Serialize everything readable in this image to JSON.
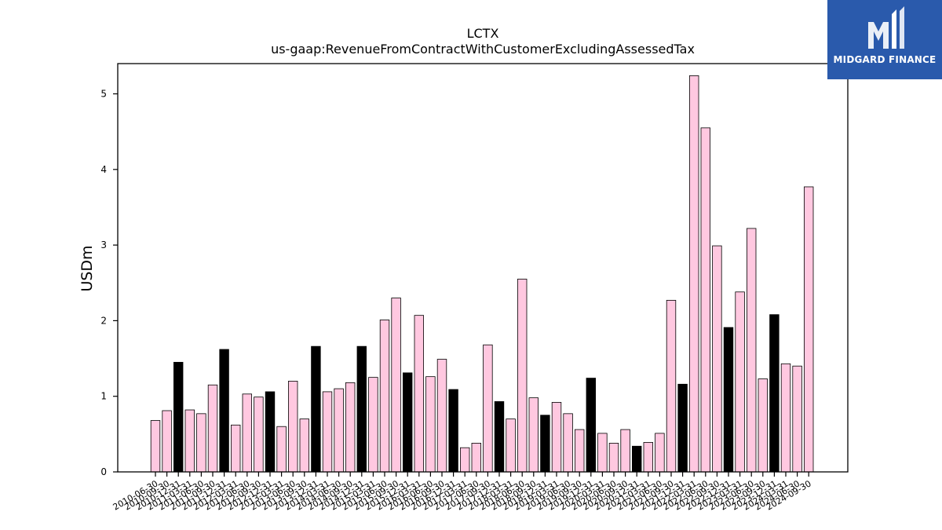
{
  "chart_data": {
    "type": "bar",
    "title": "LCTX",
    "subtitle": "us-gaap:RevenueFromContractWithCustomerExcludingAssessedTax",
    "xlabel": "",
    "ylabel": "USDm",
    "ylim": [
      0,
      5.4
    ],
    "yticks": [
      0,
      1,
      2,
      3,
      4,
      5
    ],
    "grid": false,
    "colors": {
      "default": "#ffc8e0",
      "highlight": "#000000",
      "edge": "#000000"
    },
    "categories": [
      "2010-06-30",
      "2010-09-30",
      "2010-12-31",
      "2011-03-31",
      "2011-06-30",
      "2011-09-30",
      "2011-12-31",
      "2012-03-31",
      "2012-06-30",
      "2012-09-30",
      "2012-12-31",
      "2013-03-31",
      "2013-06-30",
      "2013-09-30",
      "2013-12-31",
      "2014-03-31",
      "2014-06-30",
      "2014-09-30",
      "2014-12-31",
      "2015-03-31",
      "2015-06-30",
      "2015-09-30",
      "2015-12-31",
      "2016-03-31",
      "2016-06-30",
      "2016-09-30",
      "2016-12-31",
      "2017-03-31",
      "2017-06-30",
      "2017-09-30",
      "2017-12-31",
      "2018-03-31",
      "2018-06-30",
      "2018-09-30",
      "2018-12-31",
      "2019-03-31",
      "2019-06-30",
      "2019-09-30",
      "2019-12-31",
      "2020-03-31",
      "2020-06-30",
      "2020-09-30",
      "2020-12-31",
      "2021-03-31",
      "2021-06-30",
      "2021-09-30",
      "2021-12-31",
      "2022-03-31",
      "2022-06-30",
      "2022-09-30",
      "2022-12-31",
      "2023-03-31",
      "2023-06-30",
      "2023-09-30",
      "2023-12-31",
      "2024-03-31",
      "2024-06-30",
      "2024-09-30"
    ],
    "values": [
      0.68,
      0.81,
      1.45,
      0.82,
      0.77,
      1.15,
      1.62,
      0.62,
      1.03,
      0.99,
      1.06,
      0.6,
      1.2,
      0.7,
      1.66,
      1.06,
      1.1,
      1.18,
      1.66,
      1.25,
      2.01,
      2.3,
      1.31,
      2.07,
      1.26,
      1.49,
      1.09,
      0.32,
      0.38,
      1.68,
      0.93,
      0.7,
      2.55,
      0.98,
      0.75,
      0.92,
      0.77,
      0.56,
      1.24,
      0.51,
      0.38,
      0.56,
      0.34,
      0.39,
      0.51,
      2.27,
      1.16,
      5.24,
      4.55,
      2.99,
      1.91,
      2.38,
      3.22,
      1.23,
      2.08,
      1.43,
      1.4,
      3.77
    ],
    "highlighted": [
      "2010-12-31",
      "2011-12-31",
      "2012-12-31",
      "2013-12-31",
      "2014-12-31",
      "2015-12-31",
      "2016-12-31",
      "2017-12-31",
      "2018-12-31",
      "2019-12-31",
      "2020-12-31",
      "2021-12-31",
      "2022-12-31",
      "2023-12-31"
    ]
  },
  "logo": {
    "text": "MIDGARD FINANCE"
  }
}
